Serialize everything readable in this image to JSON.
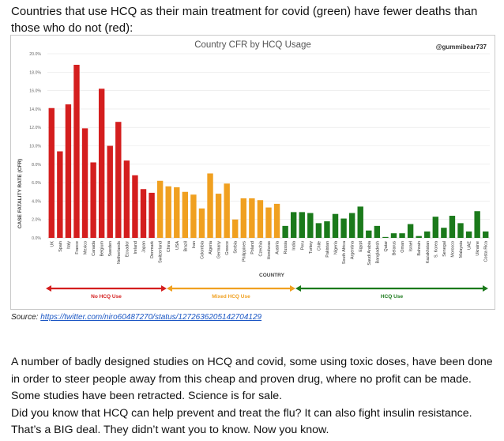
{
  "headline": "Countries that use HCQ as their main treatment for covid (green) have fewer deaths than those who do not (red):",
  "handle": "@gummibear737",
  "source": {
    "label": "Source:",
    "url_text": "https://twitter.com/niro60487270/status/1272636205142704129"
  },
  "body": {
    "paragraph1": "A number of badly designed studies on HCQ and covid, some using toxic doses, have been done in order to steer people away from this cheap and proven drug, where no profit can be made. Some studies have been retracted. Science is for sale.",
    "paragraph2": "Did you know that HCQ can help prevent and treat the flu? It can also fight insulin resistance. That’s a BIG deal. They didn’t want you to know. Now you know."
  },
  "chart_data": {
    "type": "bar",
    "title": "Country CFR by HCQ Usage",
    "xlabel": "COUNTRY",
    "ylabel": "CASE FATALITY RATE (CFR)",
    "ylim": [
      0,
      20
    ],
    "yticks": [
      "0.0%",
      "2.0%",
      "4.0%",
      "6.0%",
      "8.0%",
      "10.0%",
      "12.0%",
      "14.0%",
      "16.0%",
      "18.0%",
      "20.0%"
    ],
    "categories": [
      "UK",
      "Spain",
      "Italy",
      "France",
      "Mexico",
      "Canada",
      "Belgium",
      "Sweden",
      "Netherlands",
      "Ecuador",
      "Ireland",
      "Japan",
      "Denmark",
      "Switzerland",
      "China",
      "USA",
      "Brazil",
      "Iran",
      "Colombia",
      "Algeria",
      "Germany",
      "Greece",
      "Serbia",
      "Philippines",
      "Poland",
      "Czechia",
      "Honduras",
      "Austria",
      "Russia",
      "India",
      "Peru",
      "Turkey",
      "Chile",
      "Pakistan",
      "Nigeria",
      "South Africa",
      "Argentina",
      "Egypt",
      "Saudi Arabia",
      "Bangladesh",
      "Qatar",
      "Belarus",
      "Oman",
      "Israel",
      "Bahrain",
      "Kazakhstan",
      "S. Korea",
      "Senegal",
      "Morocco",
      "Malaysia",
      "UAE",
      "Ukraine",
      "Costa Rica"
    ],
    "values": [
      14.1,
      9.4,
      14.5,
      18.8,
      11.9,
      8.2,
      16.2,
      10.0,
      12.6,
      8.4,
      6.8,
      5.3,
      4.9,
      6.2,
      5.6,
      5.5,
      5.0,
      4.7,
      3.2,
      7.0,
      4.8,
      5.9,
      2.0,
      4.3,
      4.3,
      4.1,
      3.3,
      3.7,
      1.3,
      2.8,
      2.8,
      2.7,
      1.6,
      1.8,
      2.6,
      2.1,
      2.7,
      3.4,
      0.8,
      1.3,
      0.1,
      0.5,
      0.5,
      1.5,
      0.2,
      0.7,
      2.3,
      1.1,
      2.4,
      1.6,
      0.7,
      2.9,
      0.7
    ],
    "groups": [
      {
        "name": "No HCQ Use",
        "color": "#d41e1e",
        "start": 0,
        "end": 12
      },
      {
        "name": "Mixed HCQ Use",
        "color": "#f0a020",
        "start": 13,
        "end": 27
      },
      {
        "name": "HCQ Use",
        "color": "#1b7a1b",
        "start": 28,
        "end": 52
      }
    ],
    "grid": true
  }
}
